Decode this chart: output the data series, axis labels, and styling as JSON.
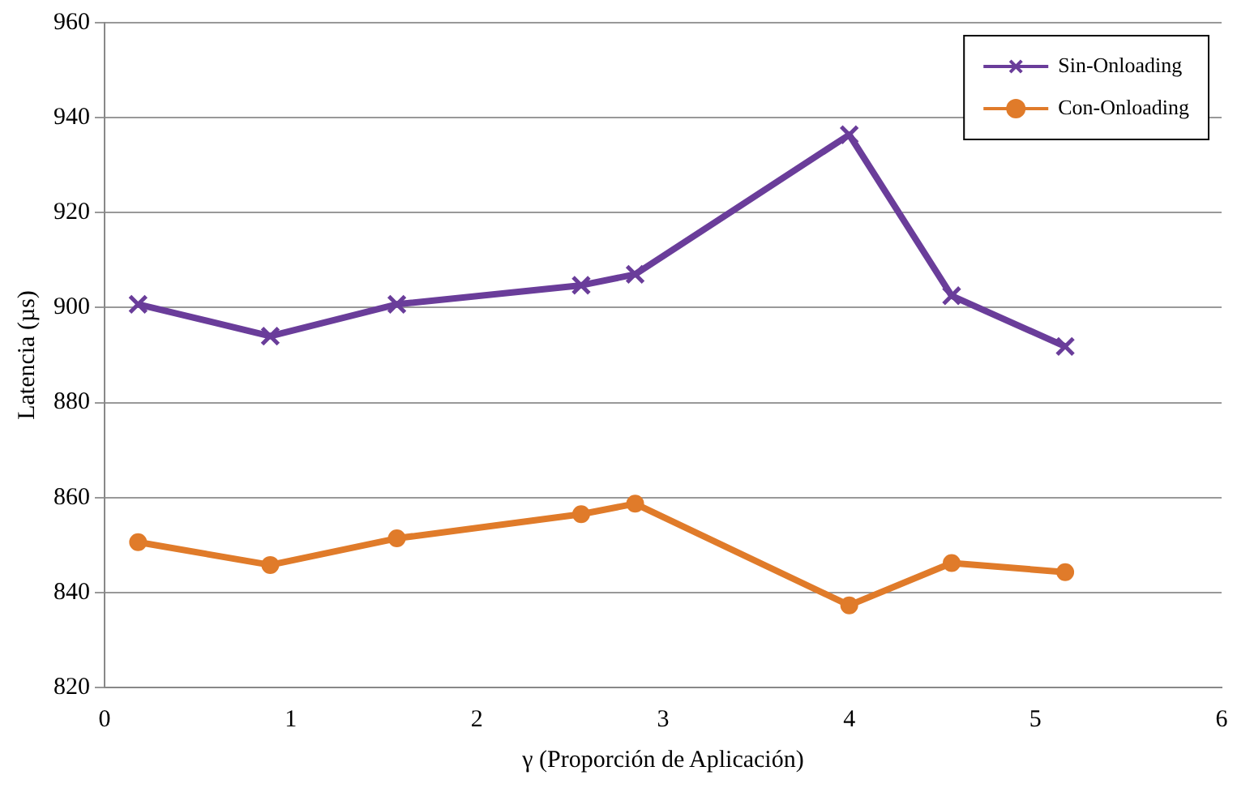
{
  "chart_data": {
    "type": "line",
    "xlabel": "γ (Proporción de Aplicación)",
    "ylabel": "Latencia (µs)",
    "xlim": [
      0,
      6
    ],
    "xticks": [
      0,
      1,
      2,
      3,
      4,
      5,
      6
    ],
    "ylim": [
      820,
      960
    ],
    "yticks": [
      820,
      840,
      860,
      880,
      900,
      920,
      940,
      960
    ],
    "grid": "y",
    "legend": "top right",
    "series": [
      {
        "name": "Sin-Onloading",
        "color": "#6a3d9a",
        "marker": "cross",
        "x": [
          0.18,
          0.89,
          1.57,
          2.56,
          2.85,
          4.0,
          4.55,
          5.16
        ],
        "values": [
          900.7,
          894,
          900.7,
          904.7,
          907,
          936.4,
          902.5,
          891.8
        ]
      },
      {
        "name": "Con-Onloading",
        "color": "#e07b2a",
        "marker": "circle",
        "x": [
          0.18,
          0.89,
          1.57,
          2.56,
          2.85,
          4.0,
          4.55,
          5.16
        ],
        "values": [
          850.6,
          845.8,
          851.4,
          856.5,
          858.7,
          837.3,
          846.2,
          844.3
        ]
      }
    ]
  }
}
